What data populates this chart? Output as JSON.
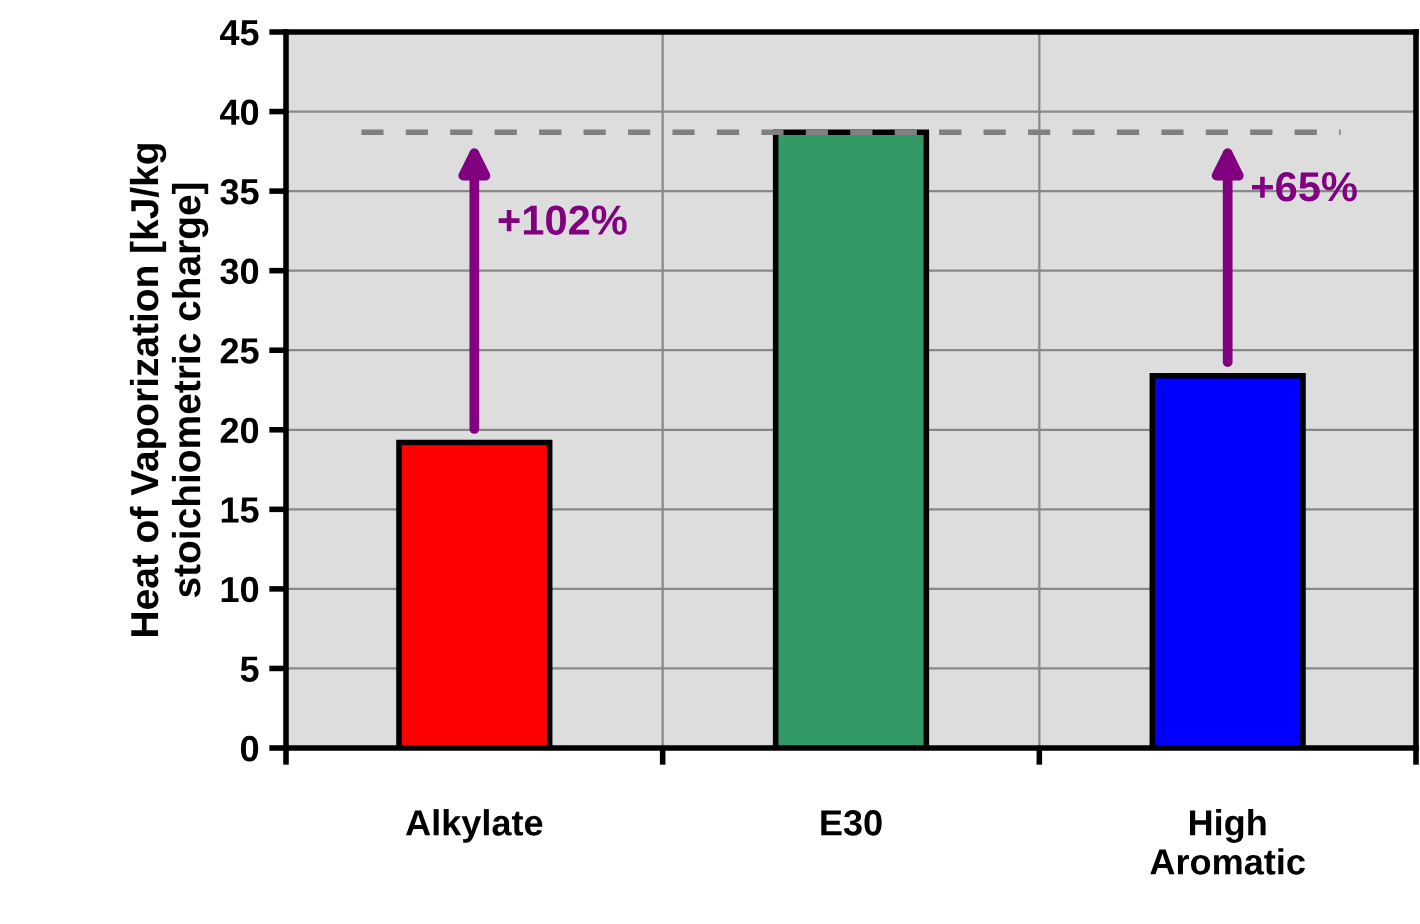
{
  "chart_data": {
    "type": "bar",
    "ylabel": "Heat of Vaporization [kJ/kg\nstoichiometric charge]",
    "categories": [
      "Alkylate",
      "E30",
      "High\nAromatic"
    ],
    "values": [
      19.2,
      38.7,
      23.4
    ],
    "colors": [
      "#ff0000",
      "#339966",
      "#0000ff"
    ],
    "ylim": [
      0,
      45
    ],
    "yticks": [
      0,
      5,
      10,
      15,
      20,
      25,
      30,
      35,
      40,
      45
    ],
    "grid": true,
    "ref_lines": [
      {
        "axis": "y",
        "value": 38.7,
        "color": "#808080",
        "line_style": "dashed"
      }
    ],
    "annotations": [
      "+102%",
      "+65%"
    ]
  }
}
